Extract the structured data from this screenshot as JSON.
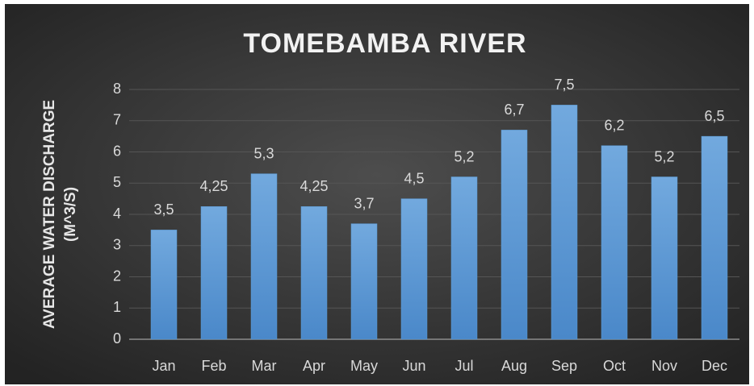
{
  "chart_data": {
    "type": "bar",
    "title": "TOMEBAMBA RIVER",
    "y_label": [
      "AVERAGE WATER DISCHARGE",
      "(M^3/S)"
    ],
    "categories": [
      "Jan",
      "Feb",
      "Mar",
      "Apr",
      "May",
      "Jun",
      "Jul",
      "Aug",
      "Sep",
      "Oct",
      "Nov",
      "Dec"
    ],
    "values": [
      3.5,
      4.25,
      5.3,
      4.25,
      3.7,
      4.5,
      5.2,
      6.7,
      7.5,
      6.2,
      5.2,
      6.5
    ],
    "value_labels": [
      "3,5",
      "4,25",
      "5,3",
      "4,25",
      "3,7",
      "4,5",
      "5,2",
      "6,7",
      "7,5",
      "6,2",
      "5,2",
      "6,5"
    ],
    "color": "#5b9bd5",
    "ylim": [
      0,
      8
    ],
    "yticks": [
      0,
      1,
      2,
      3,
      4,
      5,
      6,
      7,
      8
    ],
    "grid": true
  }
}
